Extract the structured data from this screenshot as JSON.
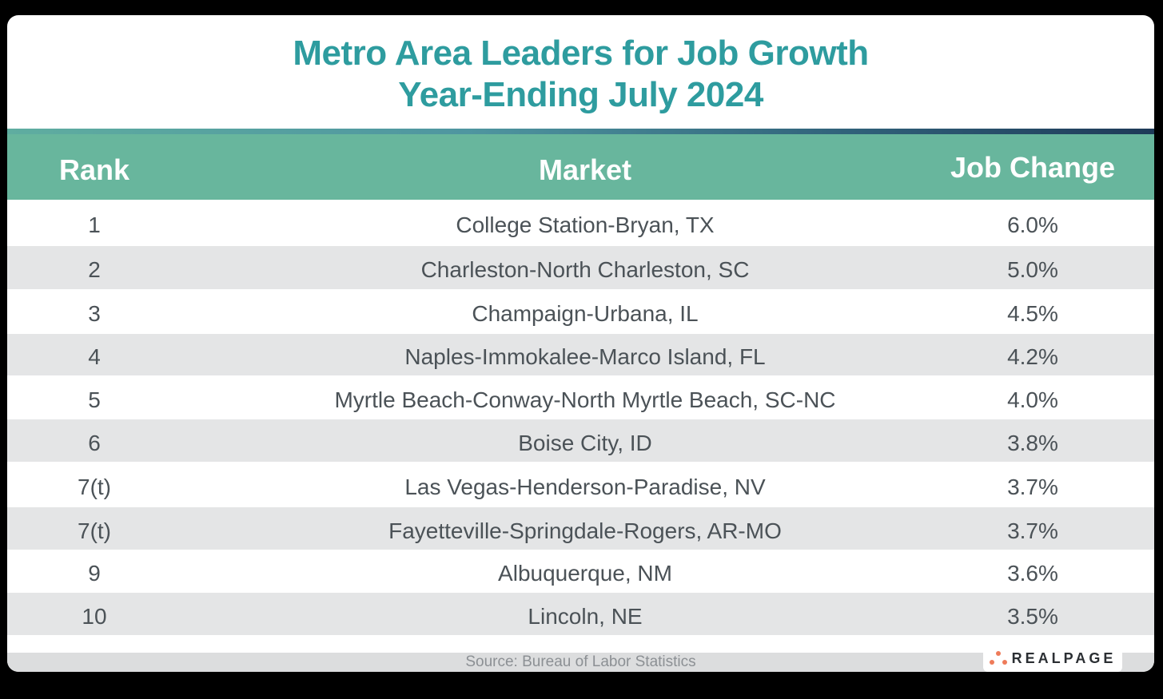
{
  "title": {
    "line1": "Metro Area Leaders for Job Growth",
    "line2": "Year-Ending July 2024"
  },
  "colors": {
    "title": "#2e9c9f",
    "header_bg": "#68b69d",
    "accent_start": "#5fada0",
    "accent_end": "#1e3a58",
    "row_alt": "#e4e5e6",
    "text": "#4b5257",
    "logo_dots": "#ee7b5a"
  },
  "table": {
    "headers": {
      "rank": "Rank",
      "market": "Market",
      "change": "Job Change"
    },
    "rows": [
      {
        "rank": "1",
        "market": "College Station-Bryan, TX",
        "change": "6.0%"
      },
      {
        "rank": "2",
        "market": "Charleston-North Charleston, SC",
        "change": "5.0%"
      },
      {
        "rank": "3",
        "market": "Champaign-Urbana, IL",
        "change": "4.5%"
      },
      {
        "rank": "4",
        "market": "Naples-Immokalee-Marco Island, FL",
        "change": "4.2%"
      },
      {
        "rank": "5",
        "market": "Myrtle Beach-Conway-North Myrtle Beach, SC-NC",
        "change": "4.0%"
      },
      {
        "rank": "6",
        "market": "Boise City, ID",
        "change": "3.8%"
      },
      {
        "rank": "7(t)",
        "market": "Las Vegas-Henderson-Paradise, NV",
        "change": "3.7%"
      },
      {
        "rank": "7(t)",
        "market": "Fayetteville-Springdale-Rogers, AR-MO",
        "change": "3.7%"
      },
      {
        "rank": "9",
        "market": "Albuquerque, NM",
        "change": "3.6%"
      },
      {
        "rank": "10",
        "market": "Lincoln, NE",
        "change": "3.5%"
      }
    ]
  },
  "footer": {
    "source": "Source: Bureau of Labor Statistics",
    "logo_text": "REALPAGE",
    "logo_icon": "realpage-dots-icon"
  }
}
